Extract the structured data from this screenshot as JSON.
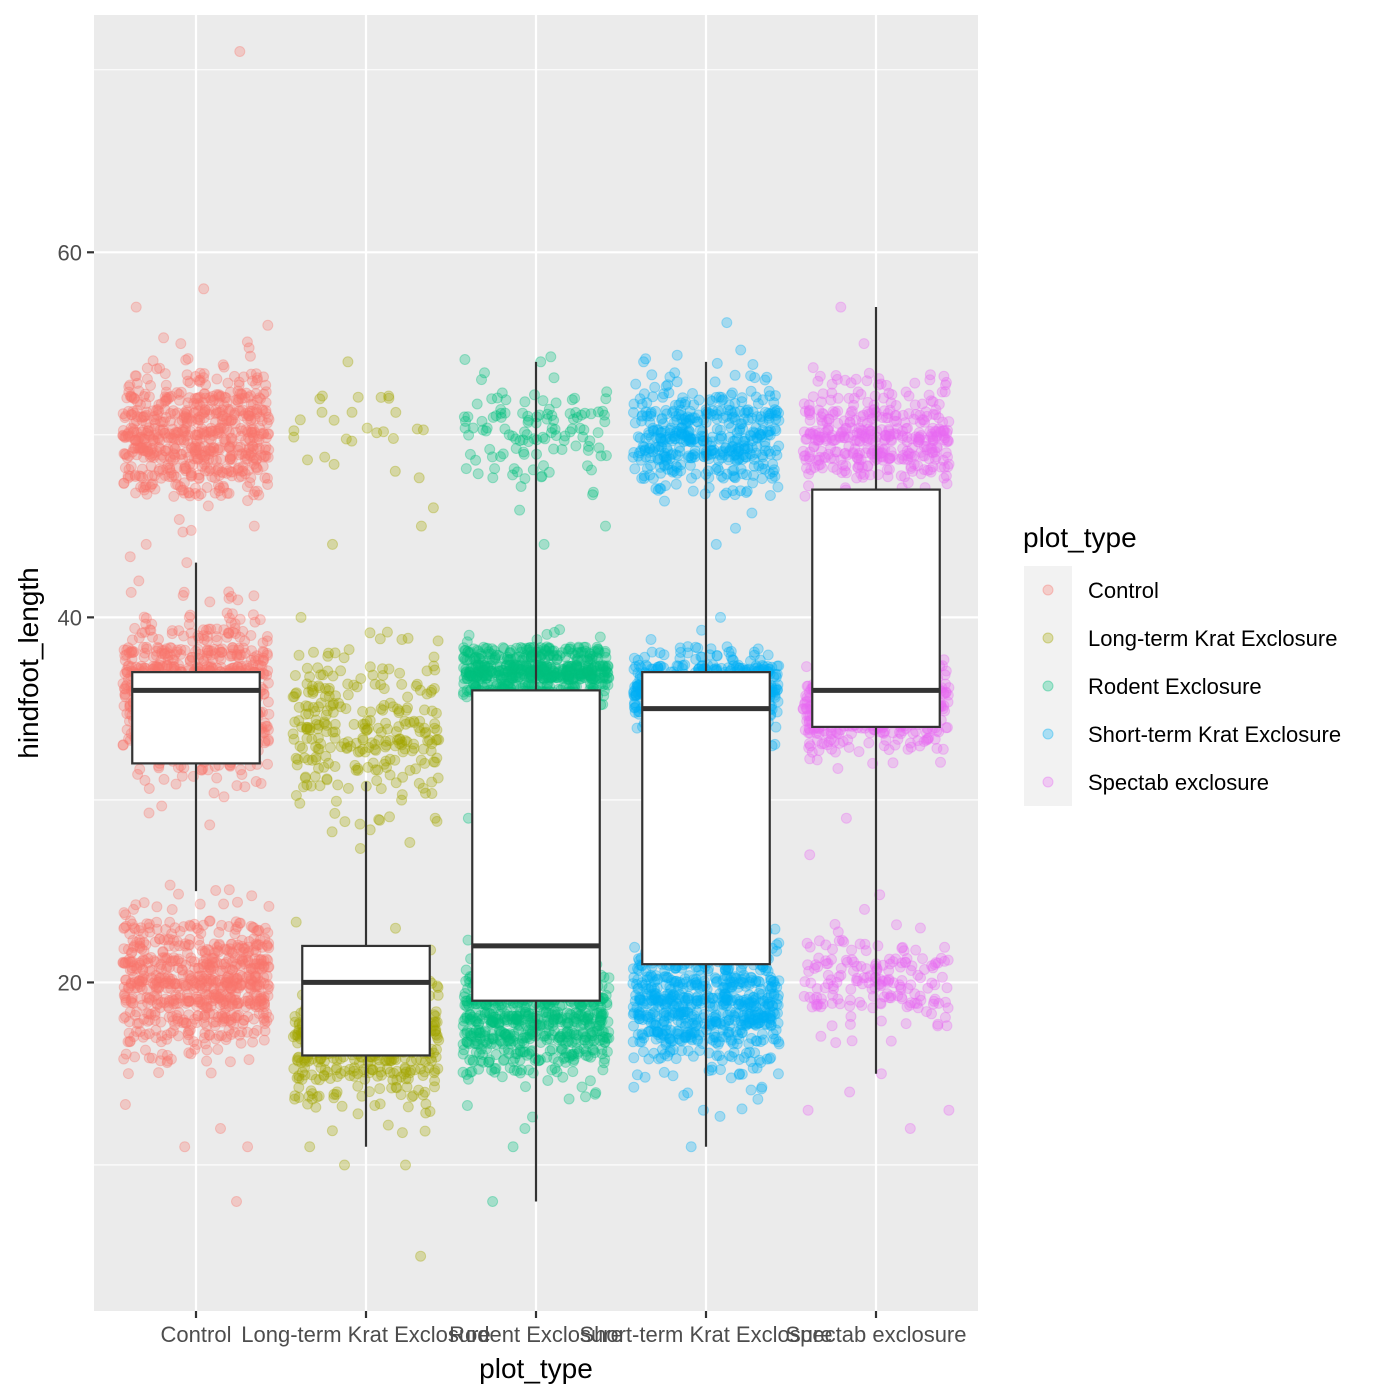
{
  "chart_data": {
    "type": "box+jitter",
    "xlabel": "plot_type",
    "ylabel": "hindfoot_length",
    "ylim": [
      2,
      73
    ],
    "yticks": [
      20,
      40,
      60
    ],
    "ytick_labels": [
      "20",
      "40",
      "60"
    ],
    "grid": true,
    "legend": {
      "title": "plot_type",
      "position": "right"
    },
    "categories": [
      "Control",
      "Long-term Krat Exclosure",
      "Rodent Exclosure",
      "Short-term Krat Exclosure",
      "Spectab exclosure"
    ],
    "colors": [
      "#F8766D",
      "#A3A500",
      "#00BF7D",
      "#00B0F6",
      "#E76BF3"
    ],
    "series": [
      {
        "name": "Control",
        "box": {
          "whisker_low": 25,
          "q1": 32,
          "median": 36,
          "q3": 37,
          "whisker_high": 43
        },
        "clusters": [
          {
            "center": 20,
            "spread": 3.0,
            "n": 700
          },
          {
            "center": 36,
            "spread": 3.5,
            "n": 800
          },
          {
            "center": 50,
            "spread": 2.8,
            "n": 650
          }
        ],
        "outliers": [
          71,
          58,
          57,
          56,
          55,
          45,
          44,
          43,
          42,
          24,
          23,
          12,
          11,
          11,
          8
        ]
      },
      {
        "name": "Long-term Krat Exclosure",
        "box": {
          "whisker_low": 11,
          "q1": 16,
          "median": 20,
          "q3": 22,
          "whisker_high": 31
        },
        "clusters": [
          {
            "center": 17,
            "spread": 3.0,
            "n": 550
          },
          {
            "center": 34,
            "spread": 3.5,
            "n": 280
          },
          {
            "center": 50,
            "spread": 2.5,
            "n": 25
          }
        ],
        "outliers": [
          54,
          52,
          46,
          45,
          44,
          40,
          11,
          10,
          10,
          5
        ]
      },
      {
        "name": "Rodent Exclosure",
        "box": {
          "whisker_low": 8,
          "q1": 19,
          "median": 22,
          "q3": 36,
          "whisker_high": 54
        },
        "clusters": [
          {
            "center": 18,
            "spread": 2.5,
            "n": 650
          },
          {
            "center": 37,
            "spread": 1.2,
            "n": 600
          },
          {
            "center": 50,
            "spread": 2.5,
            "n": 120
          }
        ],
        "outliers": [
          54,
          45,
          44,
          30,
          29,
          12,
          11,
          8
        ]
      },
      {
        "name": "Short-term Krat Exclosure",
        "box": {
          "whisker_low": 11,
          "q1": 21,
          "median": 35,
          "q3": 37,
          "whisker_high": 54
        },
        "clusters": [
          {
            "center": 19,
            "spread": 3.0,
            "n": 700
          },
          {
            "center": 36,
            "spread": 1.5,
            "n": 550
          },
          {
            "center": 50,
            "spread": 2.5,
            "n": 450
          }
        ],
        "outliers": [
          54,
          44,
          40,
          13,
          11
        ]
      },
      {
        "name": "Spectab exclosure",
        "box": {
          "whisker_low": 15,
          "q1": 34,
          "median": 36,
          "q3": 47,
          "whisker_high": 57
        },
        "clusters": [
          {
            "center": 20,
            "spread": 2.2,
            "n": 180
          },
          {
            "center": 35,
            "spread": 1.8,
            "n": 450
          },
          {
            "center": 50,
            "spread": 2.3,
            "n": 400
          }
        ],
        "outliers": [
          57,
          55,
          44,
          29,
          27,
          24,
          15,
          14,
          13,
          13,
          12
        ]
      }
    ]
  }
}
